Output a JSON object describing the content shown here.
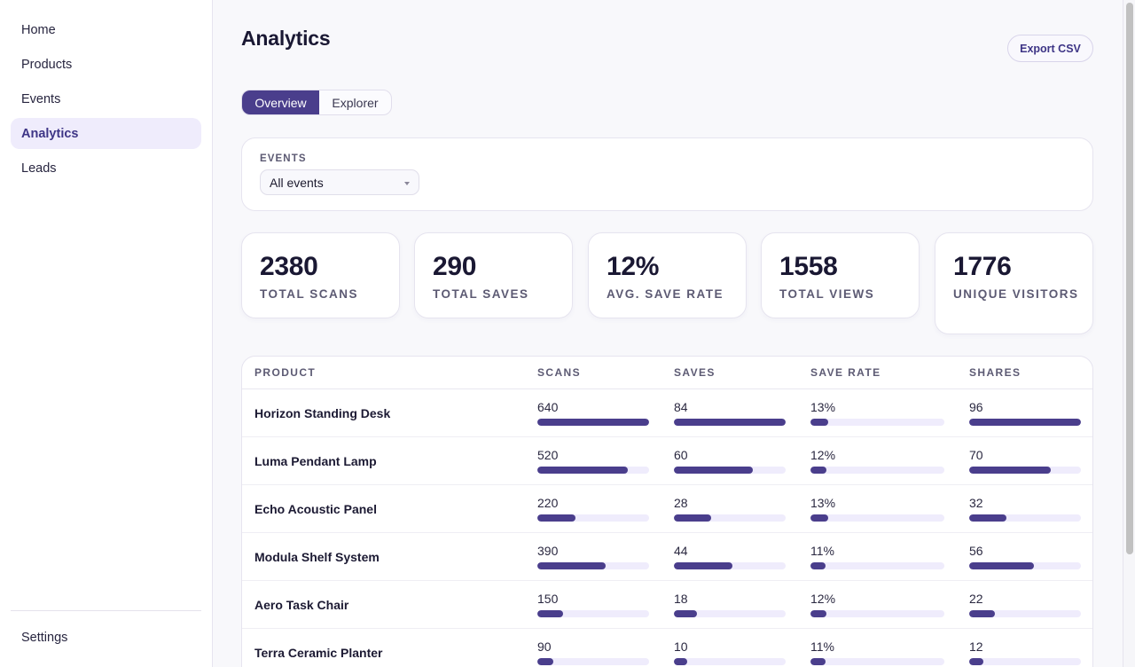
{
  "sidebar": {
    "items": [
      {
        "label": "Home",
        "active": false
      },
      {
        "label": "Products",
        "active": false
      },
      {
        "label": "Events",
        "active": false
      },
      {
        "label": "Analytics",
        "active": true
      },
      {
        "label": "Leads",
        "active": false
      }
    ],
    "footer_item": {
      "label": "Settings"
    }
  },
  "header": {
    "title": "Analytics",
    "export_label": "Export CSV"
  },
  "tabs": [
    {
      "label": "Overview",
      "active": true
    },
    {
      "label": "Explorer",
      "active": false
    }
  ],
  "filter": {
    "label": "EVENTS",
    "selected": "All events"
  },
  "stats": [
    {
      "value": "2380",
      "label": "TOTAL SCANS"
    },
    {
      "value": "290",
      "label": "TOTAL SAVES"
    },
    {
      "value": "12%",
      "label": "AVG. SAVE RATE"
    },
    {
      "value": "1558",
      "label": "TOTAL VIEWS"
    },
    {
      "value": "1776",
      "label": "UNIQUE VISITORS"
    }
  ],
  "table": {
    "columns": [
      "PRODUCT",
      "SCANS",
      "SAVES",
      "SAVE RATE",
      "SHARES"
    ],
    "rows": [
      {
        "product": "Horizon Standing Desk",
        "scans": "640",
        "saves": "84",
        "save_rate": "13%",
        "shares": "96",
        "scans_pct": 100,
        "saves_pct": 100,
        "rate_pct": 13,
        "shares_pct": 100
      },
      {
        "product": "Luma Pendant Lamp",
        "scans": "520",
        "saves": "60",
        "save_rate": "12%",
        "shares": "70",
        "scans_pct": 81,
        "saves_pct": 71,
        "rate_pct": 12,
        "shares_pct": 73
      },
      {
        "product": "Echo Acoustic Panel",
        "scans": "220",
        "saves": "28",
        "save_rate": "13%",
        "shares": "32",
        "scans_pct": 34,
        "saves_pct": 33,
        "rate_pct": 13,
        "shares_pct": 33
      },
      {
        "product": "Modula Shelf System",
        "scans": "390",
        "saves": "44",
        "save_rate": "11%",
        "shares": "56",
        "scans_pct": 61,
        "saves_pct": 52,
        "rate_pct": 11,
        "shares_pct": 58
      },
      {
        "product": "Aero Task Chair",
        "scans": "150",
        "saves": "18",
        "save_rate": "12%",
        "shares": "22",
        "scans_pct": 23,
        "saves_pct": 21,
        "rate_pct": 12,
        "shares_pct": 23
      },
      {
        "product": "Terra Ceramic Planter",
        "scans": "90",
        "saves": "10",
        "save_rate": "11%",
        "shares": "12",
        "scans_pct": 14,
        "saves_pct": 12,
        "rate_pct": 11,
        "shares_pct": 13
      }
    ]
  },
  "colors": {
    "accent": "#4a3e8c",
    "accent_light": "#efecfc",
    "text_dark": "#1a1833",
    "text_muted": "#5c5a73",
    "background": "#f8f8fb"
  }
}
